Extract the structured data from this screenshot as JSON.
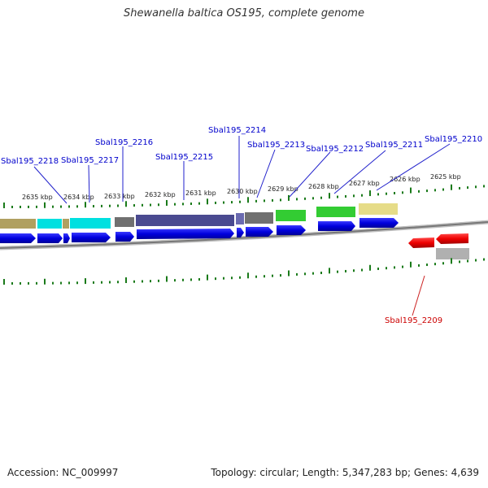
{
  "title": "Shewanella baltica OS195, complete genome",
  "footer": {
    "accession": "Accession: NC_009997",
    "topology": "Topology: circular; Length: 5,347,283 bp; Genes: 4,639"
  },
  "colors": {
    "forward_cds": "#0000dd",
    "reverse_cds": "#ee0000",
    "label_forward": "#0000cc",
    "label_reverse": "#cc0000",
    "tick": "#1a7a1a",
    "backbone": "#888888",
    "cog_olive": "#b0a060",
    "cog_cyan": "#00e0e0",
    "cog_grey": "#707070",
    "cog_slate": "#4a4a90",
    "cog_green": "#33cc33",
    "cog_khaki": "#e6dc88",
    "cog_lightgrey": "#b0b0b0"
  },
  "scale": {
    "unit": "kbp",
    "tick_labels": [
      "2635 kbp",
      "2634 kbp",
      "2633 kbp",
      "2632 kbp",
      "2631 kbp",
      "2630 kbp",
      "2629 kbp",
      "2628 kbp",
      "2627 kbp",
      "2626 kbp",
      "2625 kbp"
    ]
  },
  "genes": {
    "forward": [
      {
        "locus": "Sbal195_2218"
      },
      {
        "locus": "Sbal195_2217"
      },
      {
        "locus": "Sbal195_2216"
      },
      {
        "locus": "Sbal195_2215"
      },
      {
        "locus": "Sbal195_2214"
      },
      {
        "locus": "Sbal195_2213"
      },
      {
        "locus": "Sbal195_2212"
      },
      {
        "locus": "Sbal195_2211"
      },
      {
        "locus": "Sbal195_2210"
      }
    ],
    "reverse": [
      {
        "locus": "Sbal195_2209"
      }
    ]
  }
}
